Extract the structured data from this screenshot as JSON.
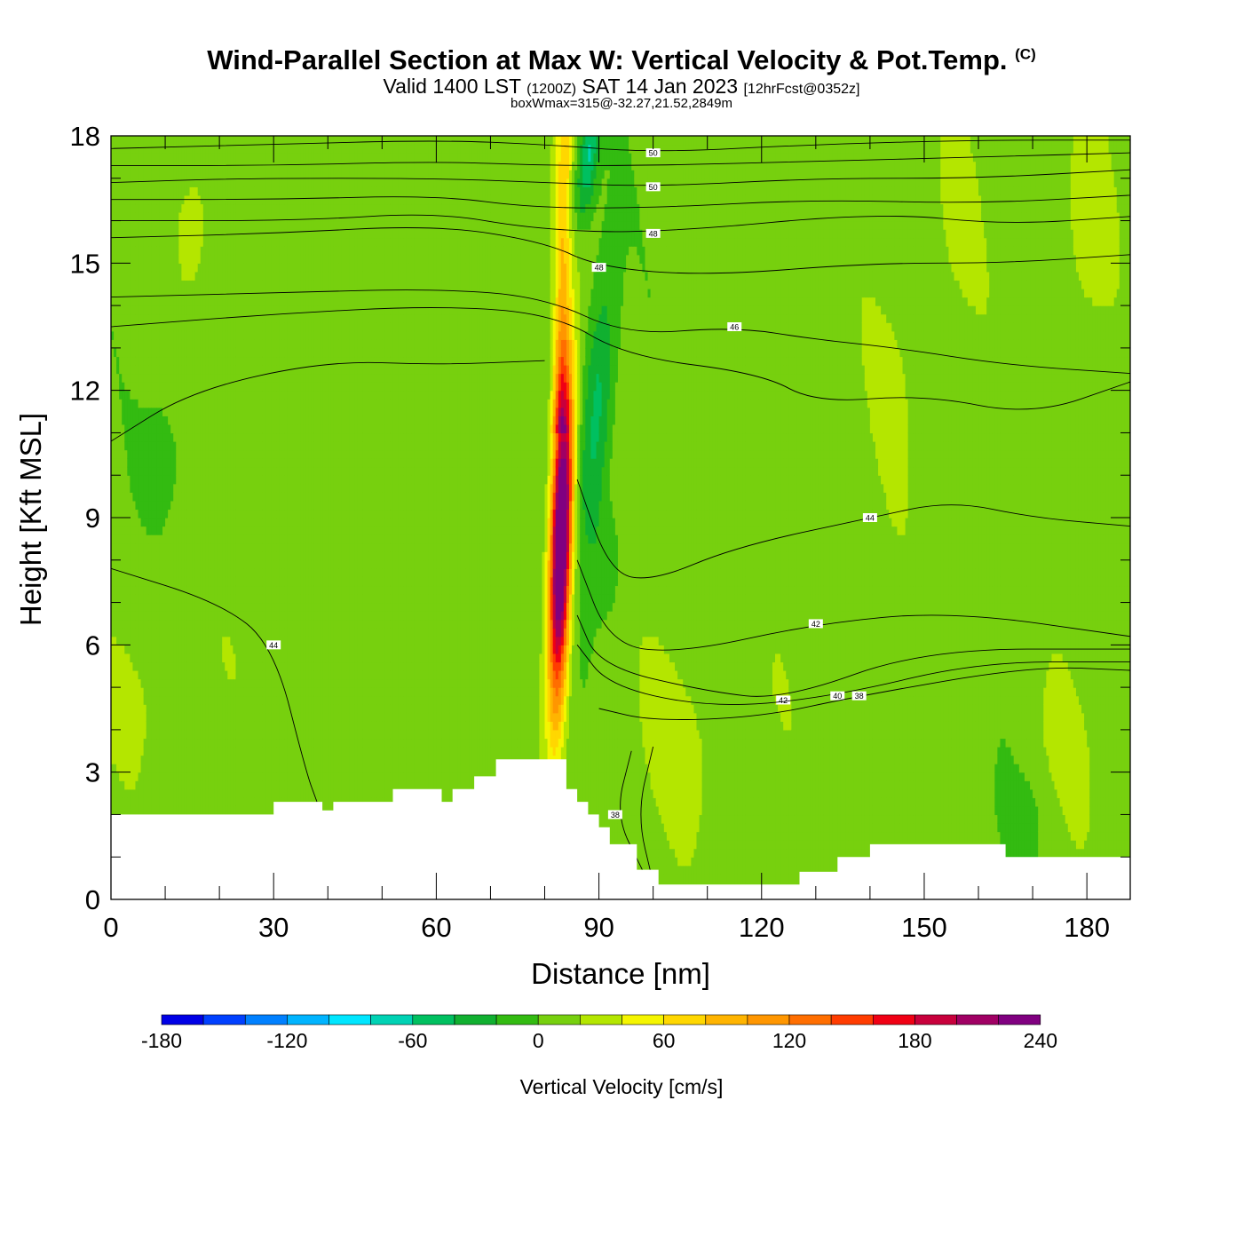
{
  "titles": {
    "main": "Wind-Parallel Section at Max W: Vertical Velocity & Pot.Temp.",
    "copyright": "(C)",
    "valid": "Valid 1400 LST",
    "zulu": "(1200Z)",
    "date": "SAT 14 Jan 2023",
    "forecast": "[12hrFcst@0352z]",
    "box": "boxWmax=315@-32.27,21.52,2849m"
  },
  "chart_data": {
    "type": "heatmap",
    "xlabel": "Distance [nm]",
    "ylabel": "Height [Kft MSL]",
    "xlim": [
      0,
      188
    ],
    "ylim": [
      0,
      18
    ],
    "xticks": [
      "0",
      "30",
      "60",
      "90",
      "120",
      "150",
      "180"
    ],
    "yticks": [
      "0",
      "3",
      "6",
      "9",
      "12",
      "15",
      "18"
    ],
    "colorbar": {
      "label": "Vertical Velocity [cm/s]",
      "levels": [
        -180,
        -160,
        -140,
        -120,
        -100,
        -80,
        -60,
        -40,
        -20,
        0,
        20,
        40,
        60,
        80,
        100,
        120,
        140,
        160,
        180,
        200,
        220,
        240,
        260
      ],
      "colors": [
        "#0000e6",
        "#0040ff",
        "#0080ff",
        "#00b4ff",
        "#00e6ff",
        "#00d2b4",
        "#00c060",
        "#10b030",
        "#33bb11",
        "#77d00e",
        "#b4e600",
        "#f5f500",
        "#ffd700",
        "#ffb400",
        "#ff9600",
        "#ff6e00",
        "#ff3c00",
        "#f00014",
        "#c8003c",
        "#a00064",
        "#800080"
      ],
      "tick_labels": [
        "-180",
        "-120",
        "-60",
        "0",
        "60",
        "120",
        "180",
        "240"
      ]
    },
    "terrain": [
      [
        0,
        2
      ],
      [
        30,
        2
      ],
      [
        30,
        2.3
      ],
      [
        39,
        2.3
      ],
      [
        39,
        2.1
      ],
      [
        41,
        2.1
      ],
      [
        41,
        2.3
      ],
      [
        52,
        2.3
      ],
      [
        52,
        2.6
      ],
      [
        61,
        2.6
      ],
      [
        61,
        2.3
      ],
      [
        63,
        2.3
      ],
      [
        63,
        2.6
      ],
      [
        67,
        2.6
      ],
      [
        67,
        2.9
      ],
      [
        71,
        2.9
      ],
      [
        71,
        3.3
      ],
      [
        84,
        3.3
      ],
      [
        84,
        2.6
      ],
      [
        86,
        2.6
      ],
      [
        86,
        2.3
      ],
      [
        88,
        2.3
      ],
      [
        88,
        2.0
      ],
      [
        90,
        2.0
      ],
      [
        90,
        1.7
      ],
      [
        92,
        1.7
      ],
      [
        92,
        1.3
      ],
      [
        97,
        1.3
      ],
      [
        97,
        0.7
      ],
      [
        101,
        0.7
      ],
      [
        101,
        0.35
      ],
      [
        127,
        0.35
      ],
      [
        127,
        0.65
      ],
      [
        134,
        0.65
      ],
      [
        134,
        1.0
      ],
      [
        140,
        1.0
      ],
      [
        140,
        1.3
      ],
      [
        165,
        1.3
      ],
      [
        165,
        1.0
      ],
      [
        188,
        1.0
      ]
    ],
    "theta_contours": [
      {
        "level": "50",
        "points": [
          [
            0,
            17.7
          ],
          [
            30,
            17.8
          ],
          [
            60,
            17.9
          ],
          [
            80,
            17.8
          ],
          [
            100,
            17.6
          ],
          [
            130,
            17.8
          ],
          [
            160,
            17.9
          ],
          [
            188,
            17.9
          ]
        ]
      },
      {
        "level": "",
        "points": [
          [
            0,
            17.3
          ],
          [
            30,
            17.3
          ],
          [
            60,
            17.4
          ],
          [
            80,
            17.3
          ],
          [
            100,
            17.3
          ],
          [
            130,
            17.4
          ],
          [
            160,
            17.5
          ],
          [
            188,
            17.6
          ]
        ]
      },
      {
        "level": "50",
        "points": [
          [
            0,
            16.9
          ],
          [
            24,
            17.0
          ],
          [
            60,
            17.0
          ],
          [
            80,
            16.9
          ],
          [
            100,
            16.8
          ],
          [
            130,
            17.0
          ],
          [
            160,
            17.0
          ],
          [
            188,
            17.2
          ]
        ]
      },
      {
        "level": "",
        "points": [
          [
            0,
            16.5
          ],
          [
            30,
            16.5
          ],
          [
            60,
            16.6
          ],
          [
            78,
            16.3
          ],
          [
            100,
            16.3
          ],
          [
            130,
            16.5
          ],
          [
            160,
            16.4
          ],
          [
            188,
            16.6
          ]
        ]
      },
      {
        "level": "48",
        "points": [
          [
            0,
            16.0
          ],
          [
            35,
            16.0
          ],
          [
            60,
            16.2
          ],
          [
            78,
            15.8
          ],
          [
            100,
            15.7
          ],
          [
            142,
            16.2
          ],
          [
            165,
            15.9
          ],
          [
            188,
            16.1
          ]
        ]
      },
      {
        "level": "48",
        "points": [
          [
            0,
            15.6
          ],
          [
            30,
            15.7
          ],
          [
            60,
            15.9
          ],
          [
            80,
            15.5
          ],
          [
            90,
            14.9
          ],
          [
            110,
            14.7
          ],
          [
            140,
            15.0
          ],
          [
            165,
            15.0
          ],
          [
            188,
            15.2
          ]
        ]
      },
      {
        "level": "46",
        "points": [
          [
            0,
            14.2
          ],
          [
            30,
            14.3
          ],
          [
            60,
            14.4
          ],
          [
            80,
            14.2
          ],
          [
            95,
            13.3
          ],
          [
            115,
            13.5
          ],
          [
            130,
            13.2
          ],
          [
            145,
            13.0
          ],
          [
            165,
            12.6
          ],
          [
            188,
            12.4
          ]
        ]
      },
      {
        "level": "",
        "points": [
          [
            0,
            13.5
          ],
          [
            30,
            13.8
          ],
          [
            60,
            14.0
          ],
          [
            82,
            13.8
          ],
          [
            95,
            12.8
          ],
          [
            120,
            12.4
          ],
          [
            130,
            11.7
          ],
          [
            150,
            11.9
          ],
          [
            170,
            11.4
          ],
          [
            188,
            12.2
          ]
        ]
      },
      {
        "level": "",
        "points": [
          [
            0,
            10.8
          ],
          [
            15,
            12.0
          ],
          [
            40,
            12.7
          ],
          [
            60,
            12.6
          ],
          [
            80,
            12.7
          ]
        ]
      },
      {
        "level": "44",
        "points": [
          [
            0,
            7.8
          ],
          [
            20,
            7.0
          ],
          [
            30,
            6.0
          ],
          [
            36,
            3.0
          ],
          [
            38,
            2.3
          ]
        ]
      },
      {
        "level": "44",
        "points": [
          [
            86,
            9.9
          ],
          [
            92,
            7.7
          ],
          [
            100,
            7.5
          ],
          [
            115,
            8.3
          ],
          [
            140,
            9.0
          ],
          [
            155,
            9.4
          ],
          [
            170,
            9.0
          ],
          [
            188,
            8.8
          ]
        ]
      },
      {
        "level": "42",
        "points": [
          [
            86,
            8.0
          ],
          [
            92,
            6.0
          ],
          [
            105,
            5.8
          ],
          [
            130,
            6.5
          ],
          [
            155,
            6.8
          ],
          [
            188,
            6.2
          ]
        ]
      },
      {
        "level": "42",
        "points": [
          [
            86,
            6.7
          ],
          [
            90,
            5.5
          ],
          [
            110,
            4.9
          ],
          [
            124,
            4.7
          ],
          [
            150,
            5.9
          ],
          [
            188,
            5.9
          ]
        ]
      },
      {
        "level": "40",
        "points": [
          [
            86,
            6.0
          ],
          [
            92,
            5.0
          ],
          [
            112,
            4.5
          ],
          [
            134,
            4.8
          ],
          [
            160,
            5.6
          ],
          [
            188,
            5.6
          ]
        ]
      },
      {
        "level": "38",
        "points": [
          [
            90,
            4.5
          ],
          [
            100,
            4.2
          ],
          [
            120,
            4.3
          ],
          [
            138,
            4.8
          ],
          [
            170,
            5.5
          ],
          [
            188,
            5.4
          ]
        ]
      },
      {
        "level": "38",
        "points": [
          [
            96,
            3.5
          ],
          [
            93,
            2.0
          ],
          [
            98,
            0.7
          ]
        ]
      },
      {
        "level": "",
        "points": [
          [
            100,
            3.6
          ],
          [
            97,
            2.0
          ],
          [
            100,
            0.4
          ]
        ]
      }
    ]
  }
}
